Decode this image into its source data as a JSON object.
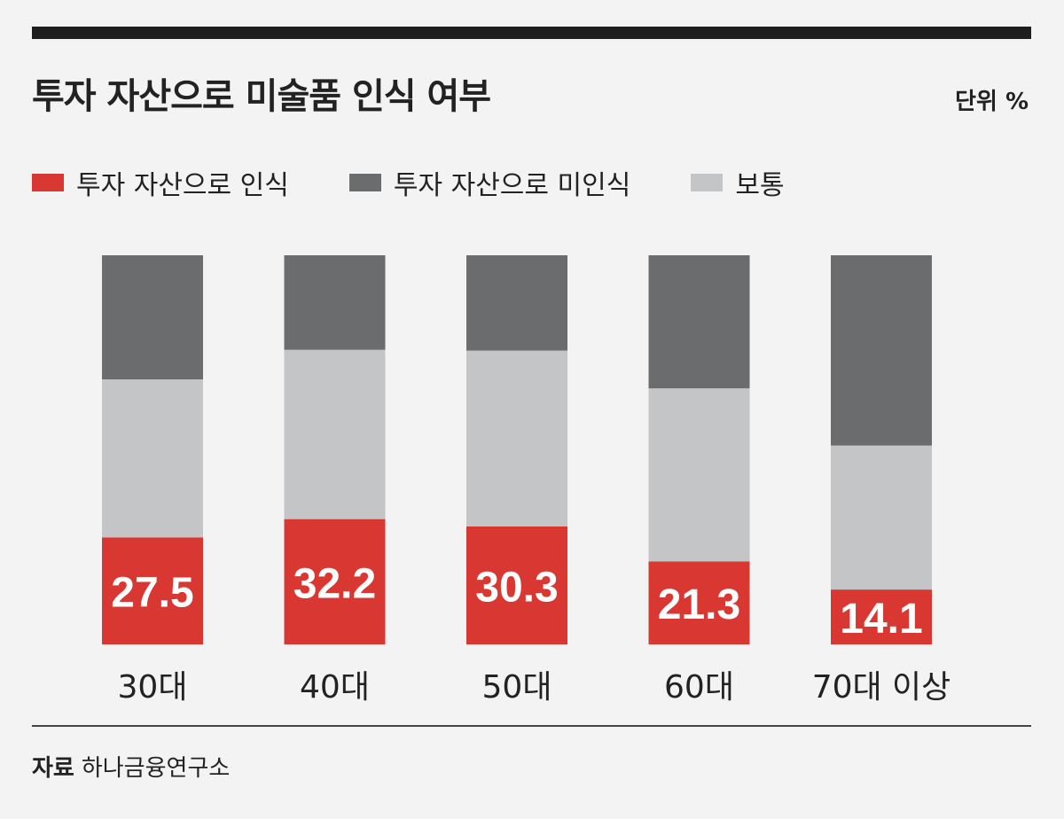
{
  "header": {
    "title": "투자 자산으로 미술품 인식 여부",
    "unit": "단위 %"
  },
  "legend": [
    {
      "label": "투자 자산으로 인식",
      "color": "#d93731"
    },
    {
      "label": "투자 자산으로 미인식",
      "color": "#6b6c6e"
    },
    {
      "label": "보통",
      "color": "#c4c5c7"
    }
  ],
  "chart_data": {
    "type": "bar",
    "stacked": true,
    "percent_stacked": true,
    "ylim": [
      0,
      100
    ],
    "categories": [
      "30대",
      "40대",
      "50대",
      "60대",
      "70대 이상"
    ],
    "series": [
      {
        "name": "투자 자산으로 인식",
        "color": "#d93731",
        "values": [
          27.5,
          32.2,
          30.3,
          21.3,
          14.1
        ],
        "labels": [
          "27.5",
          "32.2",
          "30.3",
          "21.3",
          "14.1"
        ]
      },
      {
        "name": "보통",
        "color": "#c4c5c7",
        "values": [
          40.6,
          43.5,
          45.2,
          44.5,
          37.0
        ]
      },
      {
        "name": "투자 자산으로 미인식",
        "color": "#6b6c6e",
        "values": [
          31.9,
          24.3,
          24.5,
          34.2,
          48.9
        ]
      }
    ]
  },
  "footer": {
    "source_label": "자료",
    "source_value": "하나금융연구소"
  }
}
